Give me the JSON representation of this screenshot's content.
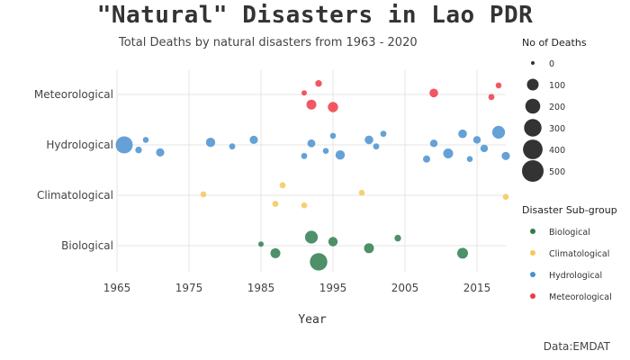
{
  "title": "\"Natural\" Disasters in Lao PDR",
  "subtitle": "Total Deaths by natural disasters from 1963 - 2020",
  "source": "Data:EMDAT",
  "chart_data": {
    "type": "scatter",
    "xlabel": "Year",
    "ylabel": "",
    "xlim": [
      1965,
      2019
    ],
    "xticks": [
      1965,
      1975,
      1985,
      1995,
      2005,
      2015
    ],
    "categories": [
      "Biological",
      "Climatological",
      "Hydrological",
      "Meteorological"
    ],
    "colors": {
      "Biological": "#2e7d4f",
      "Climatological": "#f5c75a",
      "Hydrological": "#4a90d0",
      "Meteorological": "#ee3b46"
    },
    "size_legend": {
      "title": "No of Deaths",
      "values": [
        0,
        100,
        200,
        300,
        400,
        500
      ]
    },
    "color_legend": {
      "title": "Disaster Sub-group",
      "entries": [
        "Biological",
        "Climatological",
        "Hydrological",
        "Meteorological"
      ]
    },
    "series": [
      {
        "name": "Meteorological",
        "points": [
          {
            "x": 1993,
            "y": 0.22,
            "deaths": 15
          },
          {
            "x": 1991,
            "y": 0.03,
            "deaths": 5
          },
          {
            "x": 1992,
            "y": -0.2,
            "deaths": 60
          },
          {
            "x": 1995,
            "y": -0.25,
            "deaths": 70
          },
          {
            "x": 2009,
            "y": 0.03,
            "deaths": 40
          },
          {
            "x": 2018,
            "y": 0.18,
            "deaths": 8
          },
          {
            "x": 2017,
            "y": -0.05,
            "deaths": 10
          }
        ]
      },
      {
        "name": "Hydrological",
        "points": [
          {
            "x": 1966,
            "y": 0.0,
            "deaths": 280
          },
          {
            "x": 1968,
            "y": -0.1,
            "deaths": 15
          },
          {
            "x": 1969,
            "y": 0.1,
            "deaths": 8
          },
          {
            "x": 1971,
            "y": -0.15,
            "deaths": 35
          },
          {
            "x": 1978,
            "y": 0.05,
            "deaths": 50
          },
          {
            "x": 1981,
            "y": -0.03,
            "deaths": 10
          },
          {
            "x": 1984,
            "y": 0.1,
            "deaths": 35
          },
          {
            "x": 1991,
            "y": -0.22,
            "deaths": 10
          },
          {
            "x": 1992,
            "y": 0.03,
            "deaths": 30
          },
          {
            "x": 1994,
            "y": -0.12,
            "deaths": 8
          },
          {
            "x": 1995,
            "y": 0.18,
            "deaths": 8
          },
          {
            "x": 1996,
            "y": -0.2,
            "deaths": 50
          },
          {
            "x": 2000,
            "y": 0.1,
            "deaths": 40
          },
          {
            "x": 2001,
            "y": -0.03,
            "deaths": 10
          },
          {
            "x": 2002,
            "y": 0.22,
            "deaths": 10
          },
          {
            "x": 2008,
            "y": -0.28,
            "deaths": 20
          },
          {
            "x": 2009,
            "y": 0.03,
            "deaths": 25
          },
          {
            "x": 2011,
            "y": -0.17,
            "deaths": 60
          },
          {
            "x": 2013,
            "y": 0.22,
            "deaths": 40
          },
          {
            "x": 2014,
            "y": -0.28,
            "deaths": 8
          },
          {
            "x": 2015,
            "y": 0.1,
            "deaths": 25
          },
          {
            "x": 2016,
            "y": -0.07,
            "deaths": 25
          },
          {
            "x": 2018,
            "y": 0.25,
            "deaths": 130
          },
          {
            "x": 2019,
            "y": -0.22,
            "deaths": 35
          }
        ]
      },
      {
        "name": "Climatological",
        "points": [
          {
            "x": 1977,
            "y": 0.02,
            "deaths": 8
          },
          {
            "x": 1987,
            "y": -0.17,
            "deaths": 10
          },
          {
            "x": 1988,
            "y": 0.2,
            "deaths": 10
          },
          {
            "x": 1991,
            "y": -0.2,
            "deaths": 8
          },
          {
            "x": 1999,
            "y": 0.05,
            "deaths": 8
          },
          {
            "x": 2019,
            "y": -0.03,
            "deaths": 8
          }
        ]
      },
      {
        "name": "Biological",
        "points": [
          {
            "x": 1985,
            "y": 0.03,
            "deaths": 5
          },
          {
            "x": 1987,
            "y": -0.15,
            "deaths": 60
          },
          {
            "x": 1992,
            "y": 0.17,
            "deaths": 130
          },
          {
            "x": 1993,
            "y": -0.32,
            "deaths": 300
          },
          {
            "x": 1995,
            "y": 0.08,
            "deaths": 50
          },
          {
            "x": 2000,
            "y": -0.05,
            "deaths": 60
          },
          {
            "x": 2004,
            "y": 0.15,
            "deaths": 15
          },
          {
            "x": 2013,
            "y": -0.15,
            "deaths": 80
          }
        ]
      }
    ]
  }
}
